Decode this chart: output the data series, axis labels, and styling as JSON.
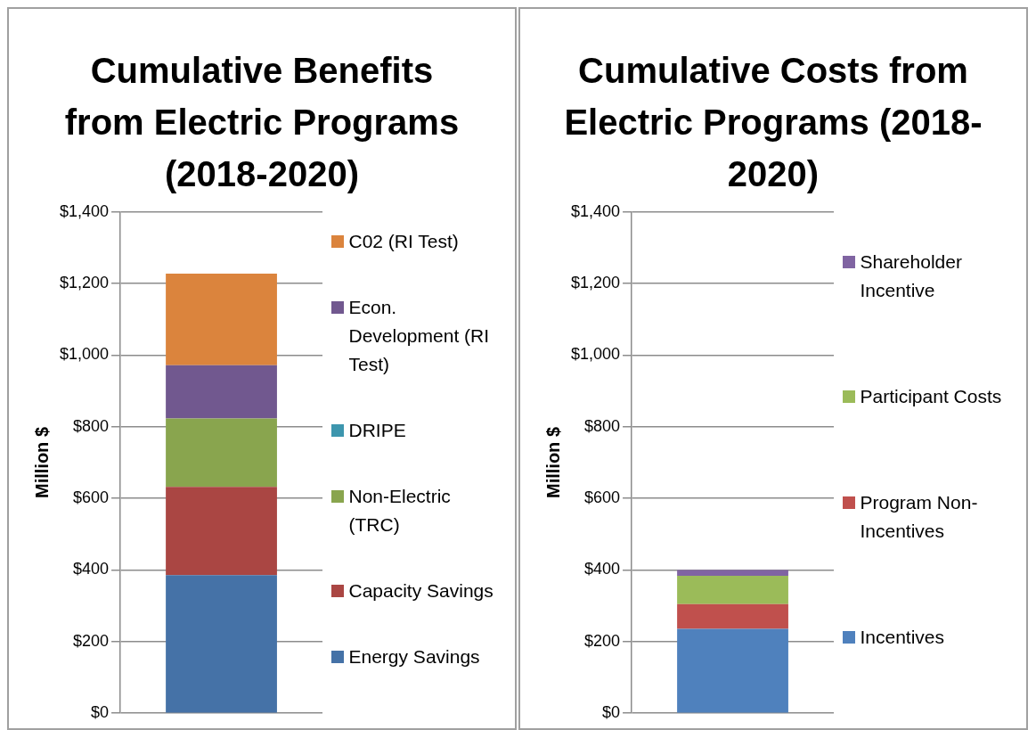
{
  "chart_data": [
    {
      "type": "bar",
      "title": "Cumulative Benefits from Electric Programs (2018-2020)",
      "ylabel": "Million $",
      "categories": [
        null
      ],
      "stacked": true,
      "grid": "y",
      "legend": "right",
      "ylim": [
        0,
        1400
      ],
      "yticks": [
        {
          "value": 0,
          "label": "$0"
        },
        {
          "value": 200,
          "label": "$200"
        },
        {
          "value": 400,
          "label": "$400"
        },
        {
          "value": 600,
          "label": "$600"
        },
        {
          "value": 800,
          "label": "$800"
        },
        {
          "value": 1000,
          "label": "$1,000"
        },
        {
          "value": 1200,
          "label": "$1,200"
        },
        {
          "value": 1400,
          "label": "$1,400"
        }
      ],
      "series": [
        {
          "name": "Energy Savings",
          "color": "#4572a7",
          "values": [
            386
          ]
        },
        {
          "name": "Capacity Savings",
          "color": "#aa4643",
          "values": [
            246
          ]
        },
        {
          "name": "Non-Electric (TRC)",
          "color": "#89a54e",
          "values": [
            191
          ]
        },
        {
          "name": "DRIPE",
          "color": "#3d96ae",
          "values": [
            0
          ]
        },
        {
          "name": "Econ. Development (RI Test)",
          "color": "#71588f",
          "values": [
            149
          ]
        },
        {
          "name": "C02 (RI Test)",
          "color": "#db843d",
          "values": [
            256
          ]
        }
      ]
    },
    {
      "type": "bar",
      "title": "Cumulative Costs from Electric Programs (2018-2020)",
      "ylabel": "Million $",
      "categories": [
        null
      ],
      "stacked": true,
      "grid": "y",
      "legend": "right",
      "ylim": [
        0,
        1400
      ],
      "yticks": [
        {
          "value": 0,
          "label": "$0"
        },
        {
          "value": 200,
          "label": "$200"
        },
        {
          "value": 400,
          "label": "$400"
        },
        {
          "value": 600,
          "label": "$600"
        },
        {
          "value": 800,
          "label": "$800"
        },
        {
          "value": 1000,
          "label": "$1,000"
        },
        {
          "value": 1200,
          "label": "$1,200"
        },
        {
          "value": 1400,
          "label": "$1,400"
        }
      ],
      "series": [
        {
          "name": "Incentives",
          "color": "#4f81bd",
          "values": [
            236
          ]
        },
        {
          "name": "Program Non-Incentives",
          "color": "#c0504d",
          "values": [
            69
          ]
        },
        {
          "name": "Participant Costs",
          "color": "#9bbb59",
          "values": [
            79
          ]
        },
        {
          "name": "Shareholder Incentive",
          "color": "#8064a2",
          "values": [
            16
          ]
        }
      ]
    }
  ]
}
